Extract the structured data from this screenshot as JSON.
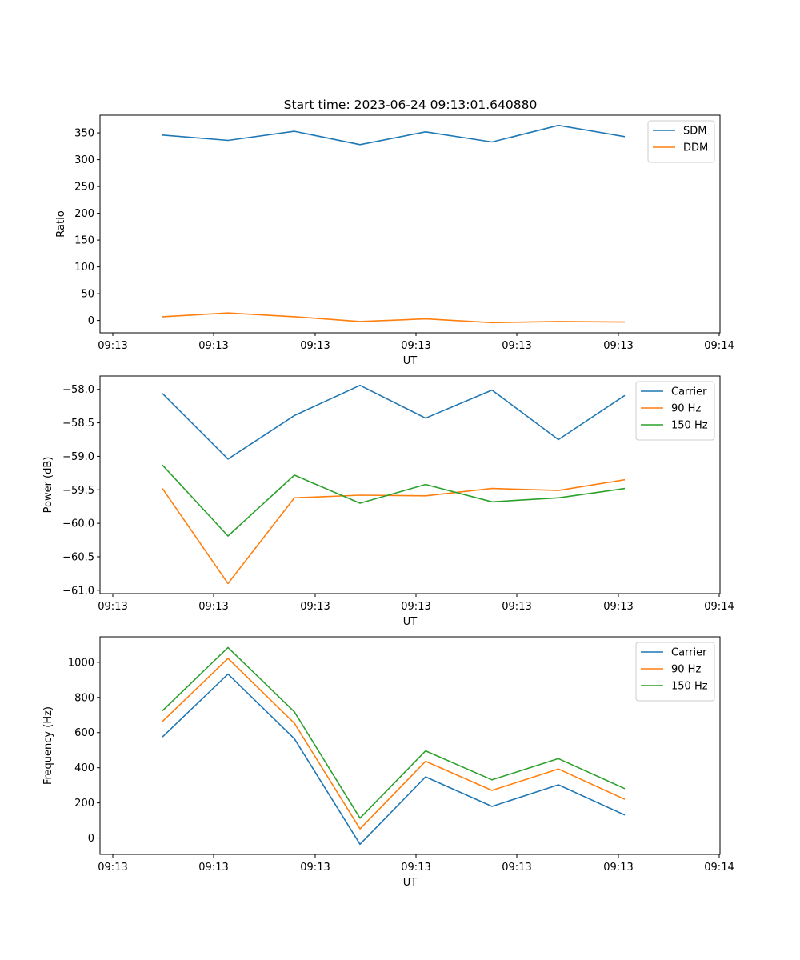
{
  "figure": {
    "title": "Start time: 2023-06-24 09:13:01.640880"
  },
  "chart_data": [
    {
      "type": "line",
      "title": "Start time: 2023-06-24 09:13:01.640880",
      "xlabel": "UT",
      "ylabel": "Ratio",
      "x_tick_labels": [
        "09:13",
        "09:13",
        "09:13",
        "09:13",
        "09:13",
        "09:13",
        "09:14"
      ],
      "y_ticks": [
        0,
        50,
        100,
        150,
        200,
        250,
        300,
        350
      ],
      "ylim": [
        -23,
        383
      ],
      "grid": false,
      "legend_position": "upper right",
      "series": [
        {
          "name": "SDM",
          "color": "#1f77b4",
          "values": [
            346,
            336,
            353,
            328,
            352,
            333,
            364,
            343
          ]
        },
        {
          "name": "DDM",
          "color": "#ff7f0e",
          "values": [
            7,
            14,
            7,
            -2,
            3,
            -4,
            -2,
            -3
          ]
        }
      ]
    },
    {
      "type": "line",
      "xlabel": "UT",
      "ylabel": "Power (dB)",
      "x_tick_labels": [
        "09:13",
        "09:13",
        "09:13",
        "09:13",
        "09:13",
        "09:13",
        "09:14"
      ],
      "y_ticks": [
        -61.0,
        -60.5,
        -60.0,
        -59.5,
        -59.0,
        -58.5,
        -58.0
      ],
      "y_tick_labels": [
        "−61.0",
        "−60.5",
        "−60.0",
        "−59.5",
        "−59.0",
        "−58.5",
        "−58.0"
      ],
      "ylim": [
        -61.05,
        -57.8
      ],
      "grid": false,
      "legend_position": "upper right",
      "series": [
        {
          "name": "Carrier",
          "color": "#1f77b4",
          "values": [
            -58.06,
            -59.04,
            -58.39,
            -57.94,
            -58.43,
            -58.01,
            -58.75,
            -58.09
          ]
        },
        {
          "name": "90 Hz",
          "color": "#ff7f0e",
          "values": [
            -59.48,
            -60.9,
            -59.62,
            -59.58,
            -59.59,
            -59.48,
            -59.51,
            -59.35
          ]
        },
        {
          "name": "150 Hz",
          "color": "#2ca02c",
          "values": [
            -59.13,
            -60.19,
            -59.28,
            -59.7,
            -59.42,
            -59.68,
            -59.62,
            -59.48
          ]
        }
      ]
    },
    {
      "type": "line",
      "xlabel": "UT",
      "ylabel": "Frequency (Hz)",
      "x_tick_labels": [
        "09:13",
        "09:13",
        "09:13",
        "09:13",
        "09:13",
        "09:13",
        "09:14"
      ],
      "y_ticks": [
        0,
        200,
        400,
        600,
        800,
        1000
      ],
      "ylim": [
        -93,
        1145
      ],
      "grid": false,
      "legend_position": "upper right",
      "series": [
        {
          "name": "Carrier",
          "color": "#1f77b4",
          "values": [
            575,
            933,
            565,
            -35,
            348,
            180,
            303,
            131
          ]
        },
        {
          "name": "90 Hz",
          "color": "#ff7f0e",
          "values": [
            663,
            1022,
            653,
            52,
            437,
            271,
            393,
            220
          ]
        },
        {
          "name": "150 Hz",
          "color": "#2ca02c",
          "values": [
            724,
            1084,
            718,
            113,
            496,
            331,
            452,
            281
          ]
        }
      ]
    }
  ]
}
